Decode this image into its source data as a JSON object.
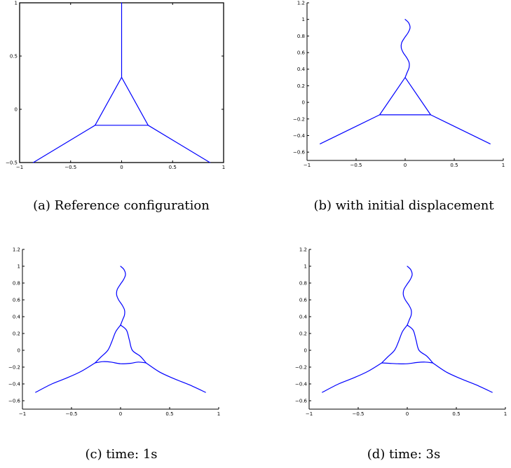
{
  "colors": {
    "line": "#0000ff",
    "axis": "#000000",
    "background": "#ffffff"
  },
  "chart_data": [
    {
      "id": "a",
      "type": "line",
      "caption": "(a) Reference configuration",
      "xlim": [
        -1,
        1
      ],
      "ylim": [
        -0.5,
        1
      ],
      "boxed": true,
      "xticks": [
        -1,
        -0.5,
        0,
        0.5,
        1
      ],
      "xtick_labels": [
        "−1",
        "−0.5",
        "0",
        "0.5",
        "1"
      ],
      "yticks": [
        -0.5,
        0,
        0.5,
        1
      ],
      "ytick_labels": [
        "−0.5",
        "0",
        "0.5",
        "1"
      ],
      "series": [
        {
          "x": [
            0,
            0
          ],
          "y": [
            0.3,
            1.0
          ]
        },
        {
          "x": [
            0,
            -0.26,
            0.26,
            0
          ],
          "y": [
            0.3,
            -0.15,
            -0.15,
            0.3
          ]
        },
        {
          "x": [
            -0.26,
            -0.866
          ],
          "y": [
            -0.15,
            -0.5
          ]
        },
        {
          "x": [
            0.26,
            0.866
          ],
          "y": [
            -0.15,
            -0.5
          ]
        }
      ]
    },
    {
      "id": "b",
      "type": "line",
      "caption": "(b) with initial displacement",
      "xlim": [
        -1,
        1
      ],
      "ylim": [
        -0.7,
        1.2
      ],
      "boxed": false,
      "xticks": [
        -1,
        -0.5,
        0,
        0.5,
        1
      ],
      "xtick_labels": [
        "−1",
        "−0.5",
        "0",
        "0.5",
        "1"
      ],
      "yticks": [
        -0.6,
        -0.4,
        -0.2,
        0,
        0.2,
        0.4,
        0.6,
        0.8,
        1,
        1.2
      ],
      "ytick_labels": [
        "−0.6",
        "−0.4",
        "−0.2",
        "0",
        "0.2",
        "0.4",
        "0.6",
        "0.8",
        "1",
        "1.2"
      ],
      "series": [
        {
          "x": [
            0,
            0.035,
            0.05,
            0.03,
            -0.005,
            -0.035,
            -0.04,
            -0.02,
            0.015,
            0.04,
            0.04,
            0.02,
            0
          ],
          "y": [
            1.0,
            0.96,
            0.9,
            0.84,
            0.78,
            0.72,
            0.66,
            0.6,
            0.54,
            0.48,
            0.42,
            0.36,
            0.3
          ]
        },
        {
          "x": [
            0,
            -0.26,
            0.26,
            0
          ],
          "y": [
            0.3,
            -0.15,
            -0.15,
            0.3
          ]
        },
        {
          "x": [
            -0.26,
            -0.866
          ],
          "y": [
            -0.15,
            -0.5
          ]
        },
        {
          "x": [
            0.26,
            0.866
          ],
          "y": [
            -0.15,
            -0.5
          ]
        }
      ]
    },
    {
      "id": "c",
      "type": "line",
      "caption": "(c) time: 1s",
      "xlim": [
        -1,
        1
      ],
      "ylim": [
        -0.7,
        1.2
      ],
      "boxed": false,
      "xticks": [
        -1,
        -0.5,
        0,
        0.5,
        1
      ],
      "xtick_labels": [
        "−1",
        "−0.5",
        "0",
        "0.5",
        "1"
      ],
      "yticks": [
        -0.6,
        -0.4,
        -0.2,
        0,
        0.2,
        0.4,
        0.6,
        0.8,
        1,
        1.2
      ],
      "ytick_labels": [
        "−0.6",
        "−0.4",
        "−0.2",
        "0",
        "0.2",
        "0.4",
        "0.6",
        "0.8",
        "1",
        "1.2"
      ],
      "series": [
        {
          "x": [
            0,
            0.035,
            0.05,
            0.03,
            -0.005,
            -0.035,
            -0.04,
            -0.02,
            0.015,
            0.04,
            0.04,
            0.02,
            0
          ],
          "y": [
            1.0,
            0.96,
            0.9,
            0.84,
            0.78,
            0.72,
            0.66,
            0.6,
            0.54,
            0.48,
            0.42,
            0.36,
            0.3
          ]
        },
        {
          "x": [
            0,
            -0.05,
            -0.09,
            -0.13,
            -0.2,
            -0.26
          ],
          "y": [
            0.3,
            0.22,
            0.1,
            0.0,
            -0.08,
            -0.15
          ]
        },
        {
          "x": [
            0,
            0.06,
            0.09,
            0.12,
            0.2,
            0.26
          ],
          "y": [
            0.3,
            0.24,
            0.12,
            0.0,
            -0.07,
            -0.15
          ]
        },
        {
          "x": [
            -0.26,
            -0.18,
            -0.1,
            0.0,
            0.1,
            0.18,
            0.26
          ],
          "y": [
            -0.15,
            -0.135,
            -0.14,
            -0.16,
            -0.155,
            -0.14,
            -0.15
          ]
        },
        {
          "x": [
            -0.26,
            -0.4,
            -0.55,
            -0.7,
            -0.866
          ],
          "y": [
            -0.15,
            -0.25,
            -0.33,
            -0.4,
            -0.5
          ]
        },
        {
          "x": [
            0.26,
            0.4,
            0.55,
            0.7,
            0.866
          ],
          "y": [
            -0.15,
            -0.26,
            -0.34,
            -0.41,
            -0.5
          ]
        }
      ]
    },
    {
      "id": "d",
      "type": "line",
      "caption": "(d) time: 3s",
      "xlim": [
        -1,
        1
      ],
      "ylim": [
        -0.7,
        1.2
      ],
      "boxed": false,
      "xticks": [
        -1,
        -0.5,
        0,
        0.5,
        1
      ],
      "xtick_labels": [
        "−1",
        "−0.5",
        "0",
        "0.5",
        "1"
      ],
      "yticks": [
        -0.6,
        -0.4,
        -0.2,
        0,
        0.2,
        0.4,
        0.6,
        0.8,
        1,
        1.2
      ],
      "ytick_labels": [
        "−0.6",
        "−0.4",
        "−0.2",
        "0",
        "0.2",
        "0.4",
        "0.6",
        "0.8",
        "1",
        "1.2"
      ],
      "series": [
        {
          "x": [
            0,
            0.035,
            0.05,
            0.03,
            -0.005,
            -0.035,
            -0.04,
            -0.02,
            0.015,
            0.04,
            0.04,
            0.02,
            0
          ],
          "y": [
            1.0,
            0.96,
            0.9,
            0.84,
            0.78,
            0.72,
            0.66,
            0.6,
            0.54,
            0.48,
            0.42,
            0.36,
            0.3
          ]
        },
        {
          "x": [
            0,
            -0.05,
            -0.09,
            -0.13,
            -0.2,
            -0.26
          ],
          "y": [
            0.3,
            0.22,
            0.1,
            0.0,
            -0.08,
            -0.15
          ]
        },
        {
          "x": [
            0,
            0.06,
            0.09,
            0.12,
            0.2,
            0.26
          ],
          "y": [
            0.3,
            0.24,
            0.12,
            0.0,
            -0.07,
            -0.15
          ]
        },
        {
          "x": [
            -0.26,
            -0.18,
            -0.1,
            0.0,
            0.1,
            0.18,
            0.26
          ],
          "y": [
            -0.15,
            -0.155,
            -0.16,
            -0.16,
            -0.145,
            -0.14,
            -0.15
          ]
        },
        {
          "x": [
            -0.26,
            -0.4,
            -0.55,
            -0.7,
            -0.866
          ],
          "y": [
            -0.15,
            -0.25,
            -0.33,
            -0.4,
            -0.5
          ]
        },
        {
          "x": [
            0.26,
            0.4,
            0.55,
            0.7,
            0.866
          ],
          "y": [
            -0.15,
            -0.26,
            -0.34,
            -0.41,
            -0.5
          ]
        }
      ]
    }
  ]
}
